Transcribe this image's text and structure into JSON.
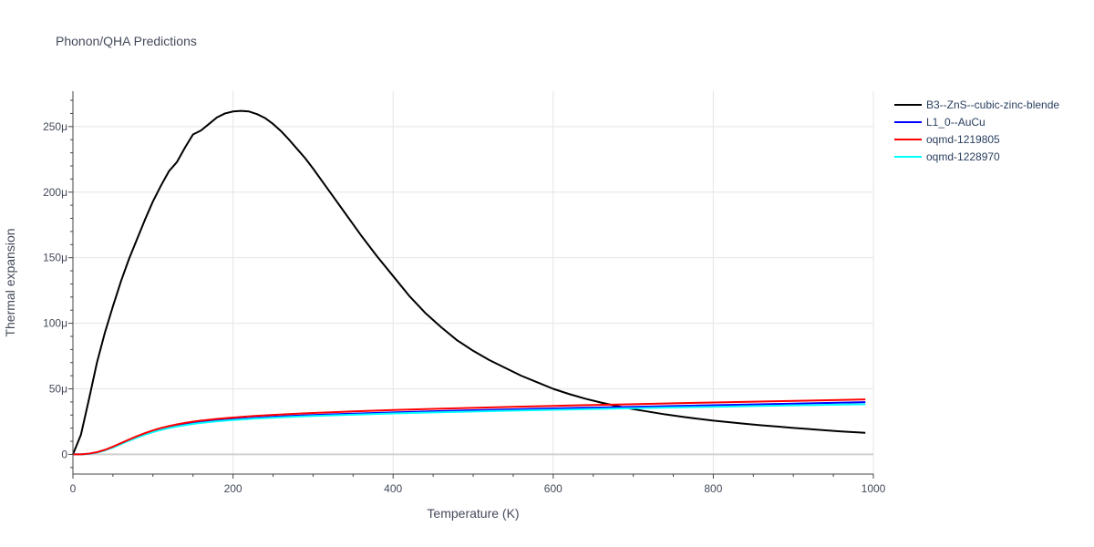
{
  "chart_data": {
    "type": "line",
    "title": "Phonon/QHA Predictions",
    "xlabel": "Temperature (K)",
    "ylabel": "Thermal expansion",
    "xlim": [
      0,
      1000
    ],
    "ylim": [
      -1.5e-05,
      0.000277
    ],
    "x_ticks": [
      {
        "value": 0,
        "label": "0"
      },
      {
        "value": 200,
        "label": "200"
      },
      {
        "value": 400,
        "label": "400"
      },
      {
        "value": 600,
        "label": "600"
      },
      {
        "value": 800,
        "label": "800"
      },
      {
        "value": 1000,
        "label": "1000"
      }
    ],
    "y_ticks": [
      {
        "value": 0,
        "label": "0"
      },
      {
        "value": 5e-05,
        "label": "50μ"
      },
      {
        "value": 0.0001,
        "label": "100μ"
      },
      {
        "value": 0.00015,
        "label": "150μ"
      },
      {
        "value": 0.0002,
        "label": "200μ"
      },
      {
        "value": 0.00025,
        "label": "250μ"
      }
    ],
    "grid": true,
    "legend_position": "top-right",
    "series": [
      {
        "name": "B3--ZnS--cubic-zinc-blende",
        "color": "#000000",
        "points": [
          [
            0,
            0
          ],
          [
            10,
            1.5e-05
          ],
          [
            20,
            4.2e-05
          ],
          [
            30,
            7e-05
          ],
          [
            40,
            9.3e-05
          ],
          [
            50,
            0.000113
          ],
          [
            60,
            0.000132
          ],
          [
            70,
            0.000149
          ],
          [
            80,
            0.000164
          ],
          [
            90,
            0.000179
          ],
          [
            100,
            0.000193
          ],
          [
            110,
            0.000205
          ],
          [
            120,
            0.000216
          ],
          [
            130,
            0.000223
          ],
          [
            140,
            0.000234
          ],
          [
            150,
            0.000244
          ],
          [
            160,
            0.000247
          ],
          [
            170,
            0.000252
          ],
          [
            180,
            0.000257
          ],
          [
            190,
            0.00026
          ],
          [
            200,
            0.0002615
          ],
          [
            210,
            0.000262
          ],
          [
            220,
            0.0002615
          ],
          [
            230,
            0.0002595
          ],
          [
            240,
            0.0002565
          ],
          [
            250,
            0.000252
          ],
          [
            260,
            0.0002465
          ],
          [
            270,
            0.00024
          ],
          [
            280,
            0.000233
          ],
          [
            290,
            0.000226
          ],
          [
            300,
            0.000218
          ],
          [
            320,
            0.000201
          ],
          [
            340,
            0.000184
          ],
          [
            360,
            0.000167
          ],
          [
            380,
            0.000151
          ],
          [
            400,
            0.000136
          ],
          [
            420,
            0.000121
          ],
          [
            440,
            0.000108
          ],
          [
            460,
            9.7e-05
          ],
          [
            480,
            8.7e-05
          ],
          [
            500,
            7.9e-05
          ],
          [
            520,
            7.2e-05
          ],
          [
            540,
            6.6e-05
          ],
          [
            560,
            6e-05
          ],
          [
            580,
            5.5e-05
          ],
          [
            600,
            5e-05
          ],
          [
            620,
            4.6e-05
          ],
          [
            640,
            4.25e-05
          ],
          [
            660,
            3.95e-05
          ],
          [
            680,
            3.68e-05
          ],
          [
            700,
            3.45e-05
          ],
          [
            720,
            3.25e-05
          ],
          [
            740,
            3.05e-05
          ],
          [
            760,
            2.88e-05
          ],
          [
            780,
            2.72e-05
          ],
          [
            800,
            2.58e-05
          ],
          [
            820,
            2.45e-05
          ],
          [
            840,
            2.33e-05
          ],
          [
            860,
            2.22e-05
          ],
          [
            880,
            2.12e-05
          ],
          [
            900,
            2.02e-05
          ],
          [
            920,
            1.93e-05
          ],
          [
            940,
            1.84e-05
          ],
          [
            960,
            1.75e-05
          ],
          [
            980,
            1.68e-05
          ],
          [
            990,
            1.65e-05
          ]
        ]
      },
      {
        "name": "L1_0--AuCu",
        "color": "#0000ff",
        "points": [
          [
            0,
            0
          ],
          [
            10,
            0
          ],
          [
            20,
            5e-07
          ],
          [
            30,
            1.5e-06
          ],
          [
            40,
            3.2e-06
          ],
          [
            50,
            5.5e-06
          ],
          [
            60,
            8.2e-06
          ],
          [
            70,
            1.08e-05
          ],
          [
            80,
            1.33e-05
          ],
          [
            90,
            1.55e-05
          ],
          [
            100,
            1.75e-05
          ],
          [
            110,
            1.92e-05
          ],
          [
            120,
            2.06e-05
          ],
          [
            130,
            2.18e-05
          ],
          [
            140,
            2.29e-05
          ],
          [
            150,
            2.38e-05
          ],
          [
            160,
            2.46e-05
          ],
          [
            180,
            2.58e-05
          ],
          [
            200,
            2.68e-05
          ],
          [
            225,
            2.78e-05
          ],
          [
            250,
            2.87e-05
          ],
          [
            275,
            2.94e-05
          ],
          [
            300,
            3e-05
          ],
          [
            350,
            3.11e-05
          ],
          [
            400,
            3.2e-05
          ],
          [
            450,
            3.29e-05
          ],
          [
            500,
            3.37e-05
          ],
          [
            550,
            3.44e-05
          ],
          [
            600,
            3.51e-05
          ],
          [
            650,
            3.57e-05
          ],
          [
            700,
            3.63e-05
          ],
          [
            750,
            3.69e-05
          ],
          [
            800,
            3.75e-05
          ],
          [
            850,
            3.81e-05
          ],
          [
            900,
            3.87e-05
          ],
          [
            950,
            3.93e-05
          ],
          [
            990,
            3.98e-05
          ]
        ]
      },
      {
        "name": "oqmd-1219805",
        "color": "#ff0000",
        "points": [
          [
            0,
            0
          ],
          [
            10,
            0
          ],
          [
            20,
            6e-07
          ],
          [
            30,
            1.7e-06
          ],
          [
            40,
            3.5e-06
          ],
          [
            50,
            5.9e-06
          ],
          [
            60,
            8.6e-06
          ],
          [
            70,
            1.13e-05
          ],
          [
            80,
            1.39e-05
          ],
          [
            90,
            1.62e-05
          ],
          [
            100,
            1.83e-05
          ],
          [
            110,
            2.01e-05
          ],
          [
            120,
            2.16e-05
          ],
          [
            130,
            2.29e-05
          ],
          [
            140,
            2.4e-05
          ],
          [
            150,
            2.5e-05
          ],
          [
            160,
            2.58e-05
          ],
          [
            180,
            2.71e-05
          ],
          [
            200,
            2.81e-05
          ],
          [
            225,
            2.92e-05
          ],
          [
            250,
            3.01e-05
          ],
          [
            275,
            3.09e-05
          ],
          [
            300,
            3.16e-05
          ],
          [
            350,
            3.28e-05
          ],
          [
            400,
            3.38e-05
          ],
          [
            450,
            3.47e-05
          ],
          [
            500,
            3.55e-05
          ],
          [
            550,
            3.63e-05
          ],
          [
            600,
            3.7e-05
          ],
          [
            650,
            3.77e-05
          ],
          [
            700,
            3.83e-05
          ],
          [
            750,
            3.9e-05
          ],
          [
            800,
            3.96e-05
          ],
          [
            850,
            4.02e-05
          ],
          [
            900,
            4.08e-05
          ],
          [
            950,
            4.14e-05
          ],
          [
            990,
            4.19e-05
          ]
        ]
      },
      {
        "name": "oqmd-1228970",
        "color": "#00ffff",
        "points": [
          [
            0,
            0
          ],
          [
            10,
            0
          ],
          [
            20,
            5e-07
          ],
          [
            30,
            1.4e-06
          ],
          [
            40,
            3e-06
          ],
          [
            50,
            5.2e-06
          ],
          [
            60,
            7.8e-06
          ],
          [
            70,
            1.04e-05
          ],
          [
            80,
            1.28e-05
          ],
          [
            90,
            1.5e-05
          ],
          [
            100,
            1.7e-05
          ],
          [
            110,
            1.87e-05
          ],
          [
            120,
            2.01e-05
          ],
          [
            130,
            2.13e-05
          ],
          [
            140,
            2.23e-05
          ],
          [
            150,
            2.32e-05
          ],
          [
            160,
            2.4e-05
          ],
          [
            180,
            2.52e-05
          ],
          [
            200,
            2.62e-05
          ],
          [
            225,
            2.72e-05
          ],
          [
            250,
            2.8e-05
          ],
          [
            275,
            2.87e-05
          ],
          [
            300,
            2.93e-05
          ],
          [
            350,
            3.03e-05
          ],
          [
            400,
            3.12e-05
          ],
          [
            450,
            3.2e-05
          ],
          [
            500,
            3.27e-05
          ],
          [
            550,
            3.34e-05
          ],
          [
            600,
            3.4e-05
          ],
          [
            650,
            3.46e-05
          ],
          [
            700,
            3.52e-05
          ],
          [
            750,
            3.58e-05
          ],
          [
            800,
            3.63e-05
          ],
          [
            850,
            3.69e-05
          ],
          [
            900,
            3.74e-05
          ],
          [
            950,
            3.79e-05
          ],
          [
            990,
            3.83e-05
          ]
        ]
      }
    ]
  }
}
